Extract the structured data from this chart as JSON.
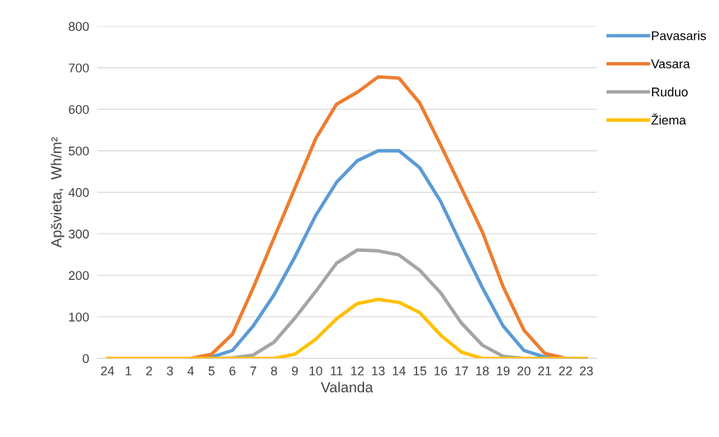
{
  "chart_data": {
    "type": "line",
    "xlabel": "Valanda",
    "ylabel": "Apšvieta,  Wh/m²",
    "categories": [
      "24",
      "1",
      "2",
      "3",
      "4",
      "5",
      "6",
      "7",
      "8",
      "9",
      "10",
      "11",
      "12",
      "13",
      "14",
      "15",
      "16",
      "17",
      "18",
      "19",
      "20",
      "21",
      "22",
      "23"
    ],
    "ylim": [
      0,
      800
    ],
    "yticks": [
      0,
      100,
      200,
      300,
      400,
      500,
      600,
      700,
      800
    ],
    "grid": "y",
    "legend": "top right",
    "marker": "none",
    "line_style": "solid",
    "series": [
      {
        "name": "Pavasaris",
        "color": "#5b9bd5",
        "values": [
          null,
          null,
          null,
          null,
          0,
          3,
          19,
          78,
          153,
          244,
          344,
          424,
          476,
          500,
          500,
          459,
          378,
          273,
          171,
          78,
          19,
          3,
          0,
          0
        ]
      },
      {
        "name": "Vasara",
        "color": "#ed7d31",
        "values": [
          null,
          null,
          null,
          null,
          0,
          10,
          58,
          170,
          290,
          410,
          529,
          612,
          641,
          678,
          675,
          615,
          514,
          410,
          305,
          173,
          68,
          12,
          0,
          0
        ]
      },
      {
        "name": "Ruduo",
        "color": "#a5a5a5",
        "values": [
          0,
          0,
          0,
          0,
          0,
          0,
          1,
          8,
          39,
          97,
          161,
          229,
          261,
          259,
          249,
          212,
          158,
          85,
          32,
          5,
          0,
          0,
          0,
          0
        ]
      },
      {
        "name": "Žiema",
        "color": "#ffc000",
        "values": [
          0,
          0,
          0,
          0,
          0,
          0,
          0,
          0,
          0,
          10,
          46,
          95,
          132,
          142,
          135,
          110,
          56,
          15,
          0,
          0,
          0,
          0,
          0,
          0
        ]
      }
    ]
  }
}
